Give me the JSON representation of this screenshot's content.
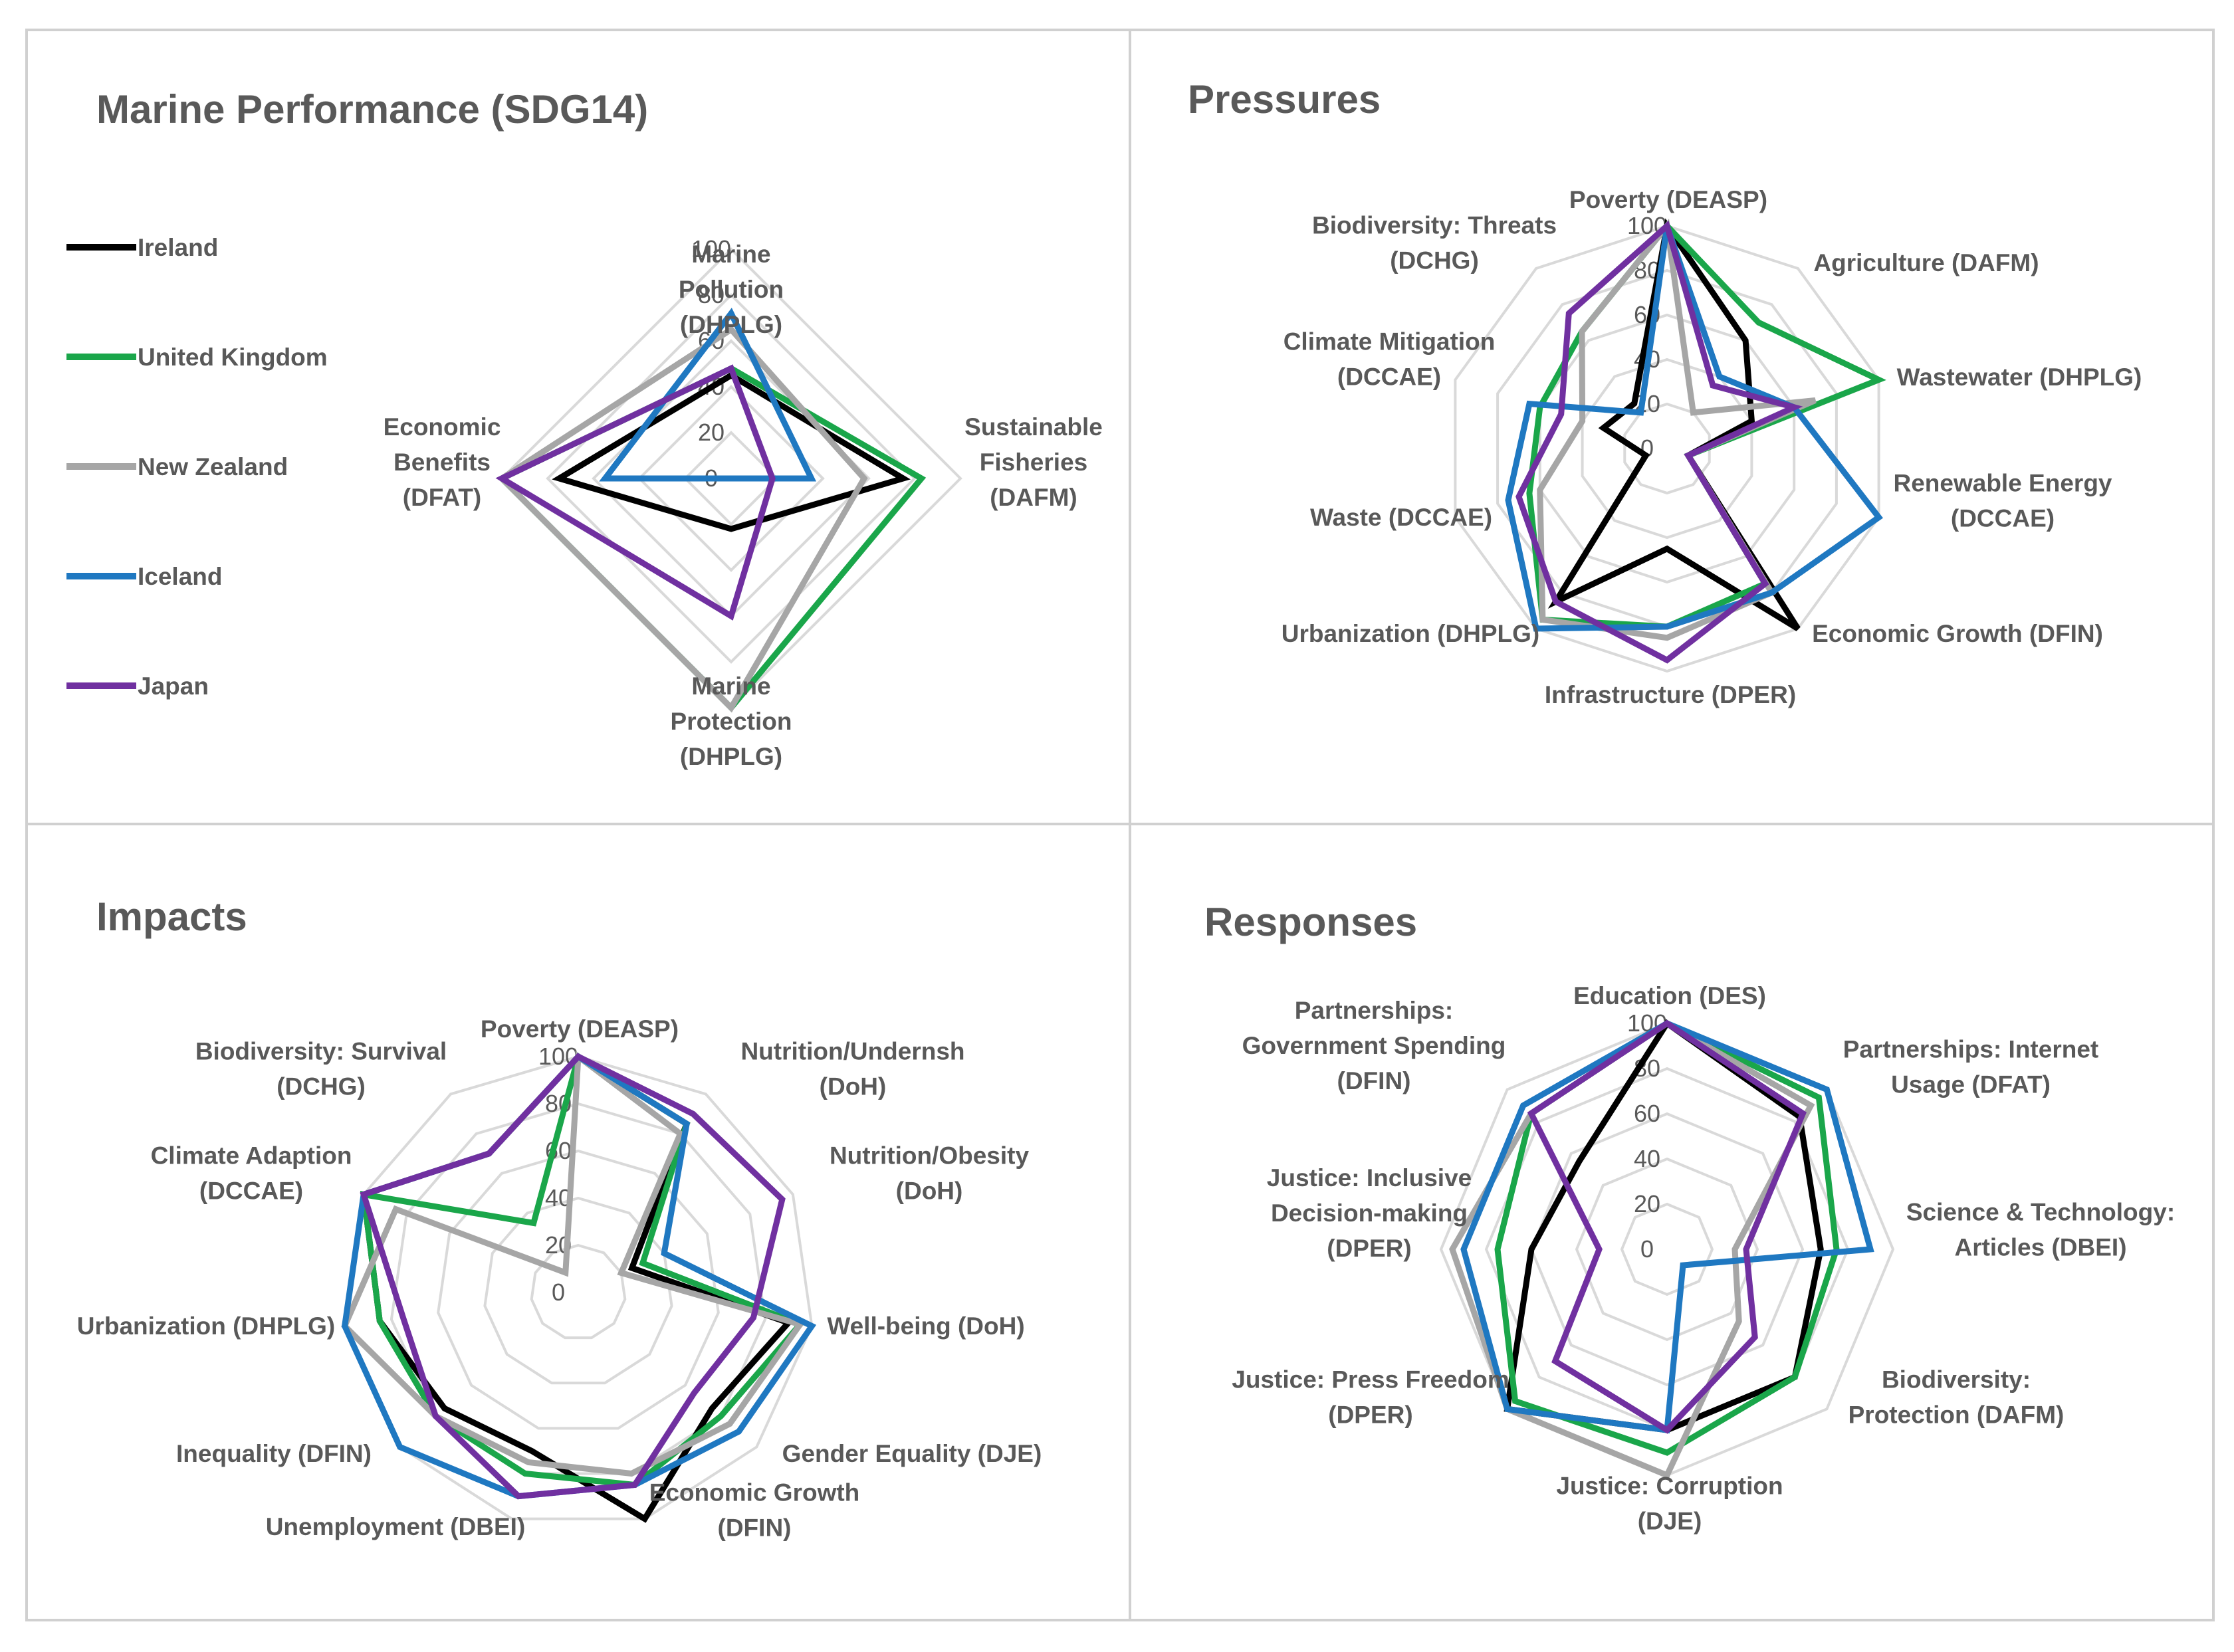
{
  "colors": {
    "Ireland": "#000000",
    "United Kingdom": "#1aa64a",
    "New Zealand": "#a6a6a6",
    "Iceland": "#1f78c1",
    "Japan": "#7030a0",
    "grid": "#d9d9d9",
    "panel_border": "#d0d0d0"
  },
  "legend": [
    "Ireland",
    "United Kingdom",
    "New Zealand",
    "Iceland",
    "Japan"
  ],
  "chart_data": [
    {
      "type": "radar",
      "title": "Marine Performance (SDG14)",
      "axes": [
        [
          "Marine",
          "Pollution",
          "(DHPLG)"
        ],
        [
          "Sustainable",
          "Fisheries",
          "(DAFM)"
        ],
        [
          "Marine",
          "Protection",
          "(DHPLG)"
        ],
        [
          "Economic",
          "Benefits",
          "(DFAT)"
        ]
      ],
      "rlim": [
        0,
        100
      ],
      "ticks": [
        "0",
        "20",
        "40",
        "60",
        "80",
        "100"
      ],
      "series": [
        {
          "name": "Ireland",
          "values": [
            45,
            75,
            22,
            75
          ]
        },
        {
          "name": "United Kingdom",
          "values": [
            48,
            83,
            100,
            100
          ]
        },
        {
          "name": "New Zealand",
          "values": [
            65,
            58,
            100,
            100
          ]
        },
        {
          "name": "Iceland",
          "values": [
            72,
            35,
            0,
            55
          ]
        },
        {
          "name": "Japan",
          "values": [
            48,
            18,
            60,
            100
          ]
        }
      ]
    },
    {
      "type": "radar",
      "title": "Pressures",
      "axes": [
        [
          "Poverty (DEASP)"
        ],
        [
          "Agriculture (DAFM)"
        ],
        [
          "Wastewater (DHPLG)"
        ],
        [
          "Renewable Energy",
          "(DCCAE)"
        ],
        [
          "Economic Growth (DFIN)"
        ],
        [
          "Infrastructure (DPER)"
        ],
        [
          "Urbanization (DHPLG)"
        ],
        [
          "Waste (DCCAE)"
        ],
        [
          "Climate Mitigation",
          "(DCCAE)"
        ],
        [
          "Biodiversity: Threats",
          "(DCHG)"
        ]
      ],
      "rlim": [
        0,
        100
      ],
      "ticks": [
        "0",
        "20",
        "40",
        "60",
        "80",
        "100"
      ],
      "series": [
        {
          "name": "Ireland",
          "values": [
            100,
            60,
            40,
            10,
            100,
            45,
            85,
            10,
            30,
            25
          ]
        },
        {
          "name": "United Kingdom",
          "values": [
            100,
            70,
            100,
            10,
            75,
            80,
            95,
            65,
            60,
            65
          ]
        },
        {
          "name": "New Zealand",
          "values": [
            100,
            20,
            70,
            10,
            80,
            85,
            95,
            60,
            40,
            65
          ]
        },
        {
          "name": "Iceland",
          "values": [
            100,
            40,
            60,
            100,
            80,
            80,
            100,
            75,
            65,
            20
          ]
        },
        {
          "name": "Japan",
          "values": [
            100,
            35,
            60,
            10,
            75,
            95,
            85,
            70,
            50,
            75
          ]
        }
      ]
    },
    {
      "type": "radar",
      "title": "Impacts",
      "axes": [
        [
          "Poverty (DEASP)"
        ],
        [
          "Nutrition/Undernsh",
          "(DoH)"
        ],
        [
          "Nutrition/Obesity",
          "(DoH)"
        ],
        [
          "Well-being (DoH)"
        ],
        [
          "Gender Equality (DJE)"
        ],
        [
          "Economic Growth",
          "(DFIN)"
        ],
        [
          "Unemployment (DBEI)"
        ],
        [
          "Inequality (DFIN)"
        ],
        [
          "Urbanization (DHPLG)"
        ],
        [
          "Climate Adaption",
          "(DCCAE)"
        ],
        [
          "Biodiversity: Survival",
          "(DCHG)"
        ]
      ],
      "rlim": [
        0,
        100
      ],
      "ticks": [
        "0",
        "20",
        "40",
        "60",
        "80",
        "100"
      ],
      "series": [
        {
          "name": "Ireland",
          "values": [
            100,
            85,
            25,
            90,
            75,
            100,
            70,
            75,
            85,
            100,
            70
          ]
        },
        {
          "name": "United Kingdom",
          "values": [
            100,
            85,
            30,
            95,
            80,
            85,
            80,
            80,
            85,
            100,
            35
          ]
        },
        {
          "name": "New Zealand",
          "values": [
            100,
            80,
            20,
            95,
            85,
            80,
            75,
            80,
            100,
            85,
            10
          ]
        },
        {
          "name": "Iceland",
          "values": [
            100,
            85,
            40,
            100,
            90,
            85,
            90,
            100,
            100,
            100,
            70
          ]
        },
        {
          "name": "Japan",
          "values": [
            100,
            90,
            95,
            75,
            65,
            85,
            90,
            80,
            75,
            100,
            70
          ]
        }
      ]
    },
    {
      "type": "radar",
      "title": "Responses",
      "axes": [
        [
          "Education (DES)"
        ],
        [
          "Partnerships: Internet",
          "Usage (DFAT)"
        ],
        [
          "Science & Technology:",
          "Articles (DBEI)"
        ],
        [
          "Biodiversity:",
          "Protection (DAFM)"
        ],
        [
          "Justice: Corruption",
          "(DJE)"
        ],
        [
          "Justice: Press Freedom",
          "(DPER)"
        ],
        [
          "Justice: Inclusive",
          "Decision-making",
          "(DPER)"
        ],
        [
          "Partnerships:",
          "Government Spending",
          "(DFIN)"
        ]
      ],
      "rlim": [
        0,
        100
      ],
      "ticks": [
        "0",
        "20",
        "40",
        "60",
        "80",
        "100"
      ],
      "series": [
        {
          "name": "Ireland",
          "values": [
            100,
            83,
            68,
            80,
            80,
            100,
            60,
            55
          ]
        },
        {
          "name": "United Kingdom",
          "values": [
            100,
            95,
            75,
            80,
            90,
            95,
            75,
            85
          ]
        },
        {
          "name": "New Zealand",
          "values": [
            100,
            90,
            30,
            45,
            100,
            100,
            95,
            85
          ]
        },
        {
          "name": "Iceland",
          "values": [
            100,
            100,
            90,
            10,
            80,
            100,
            90,
            90
          ]
        },
        {
          "name": "Japan",
          "values": [
            100,
            85,
            35,
            55,
            80,
            70,
            30,
            85
          ]
        }
      ]
    }
  ]
}
